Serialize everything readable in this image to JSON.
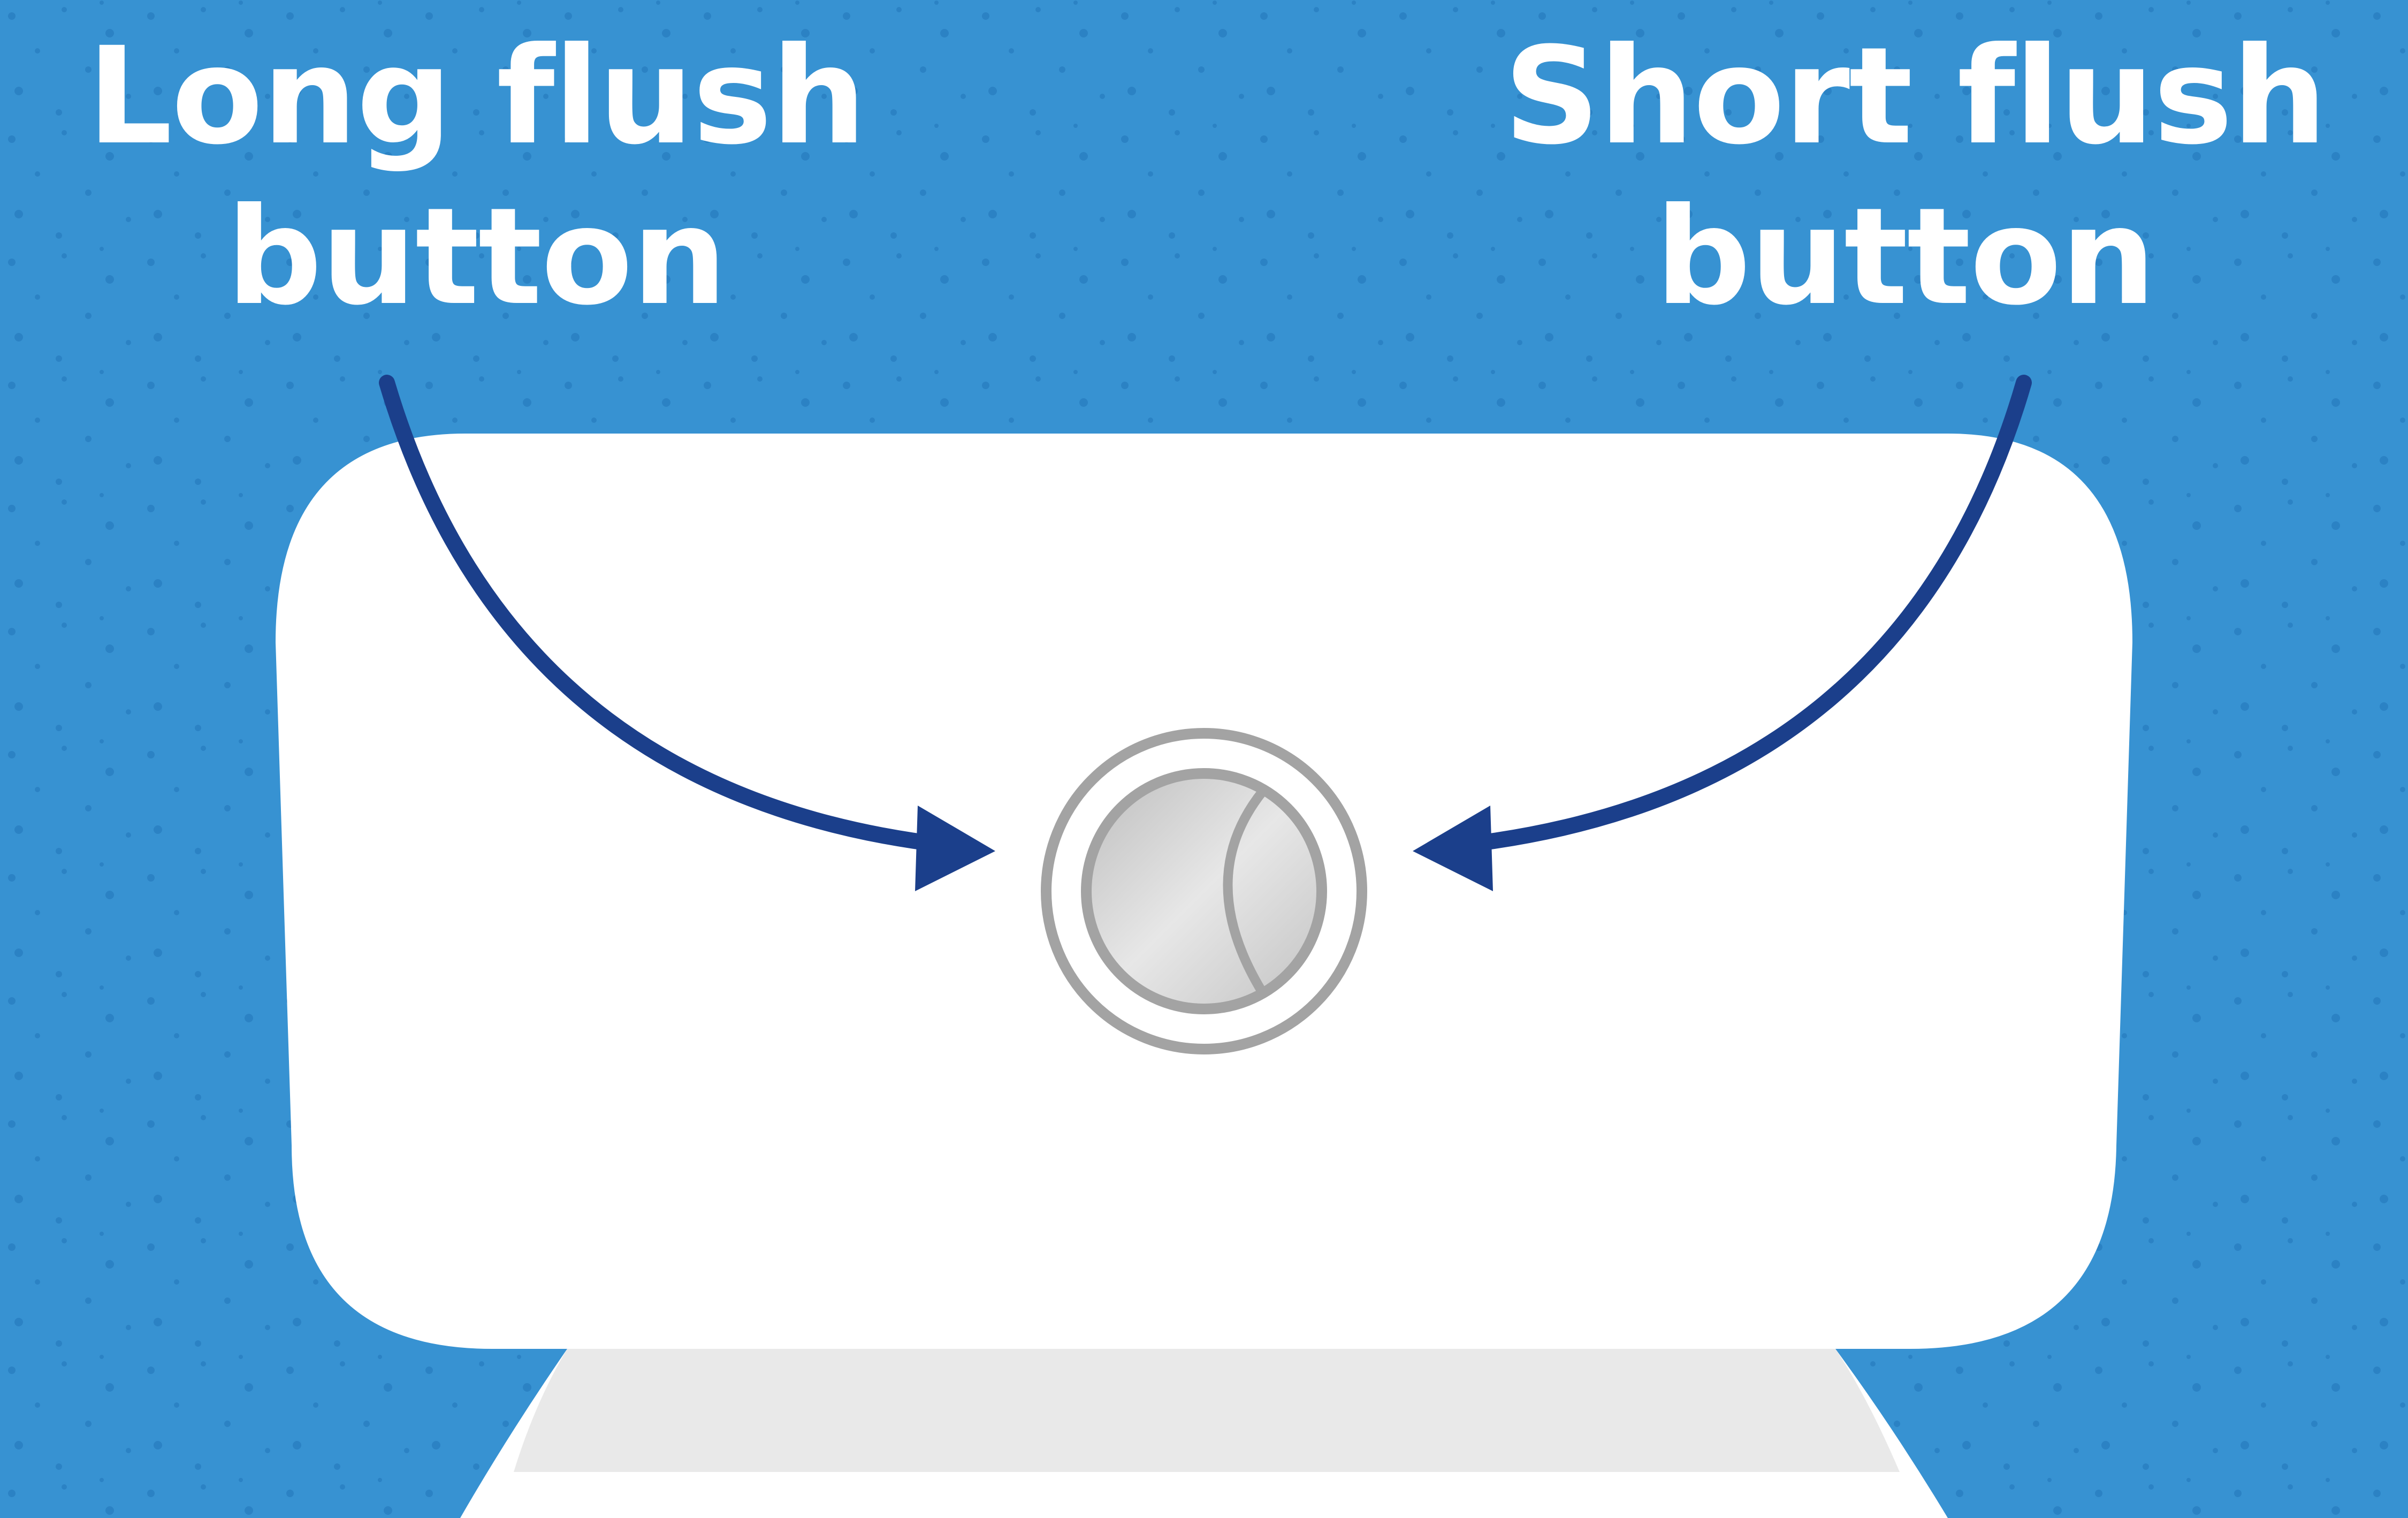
{
  "labels": {
    "long_flush": {
      "line1": "Long flush",
      "line2": "button"
    },
    "short_flush": {
      "line1": "Short flush",
      "line2": "button"
    }
  },
  "colors": {
    "background": "#3792d2",
    "speckle": "#2b82c4",
    "cistern": "#ffffff",
    "bowl_rim": "#e9e9e9",
    "arrow": "#1b3f8b",
    "button_ring": "#a3a3a3",
    "button_metal": "#d4d4d4",
    "label_text": "#ffffff"
  },
  "icons": {
    "dual_flush_button": "dual-flush-button-icon"
  }
}
